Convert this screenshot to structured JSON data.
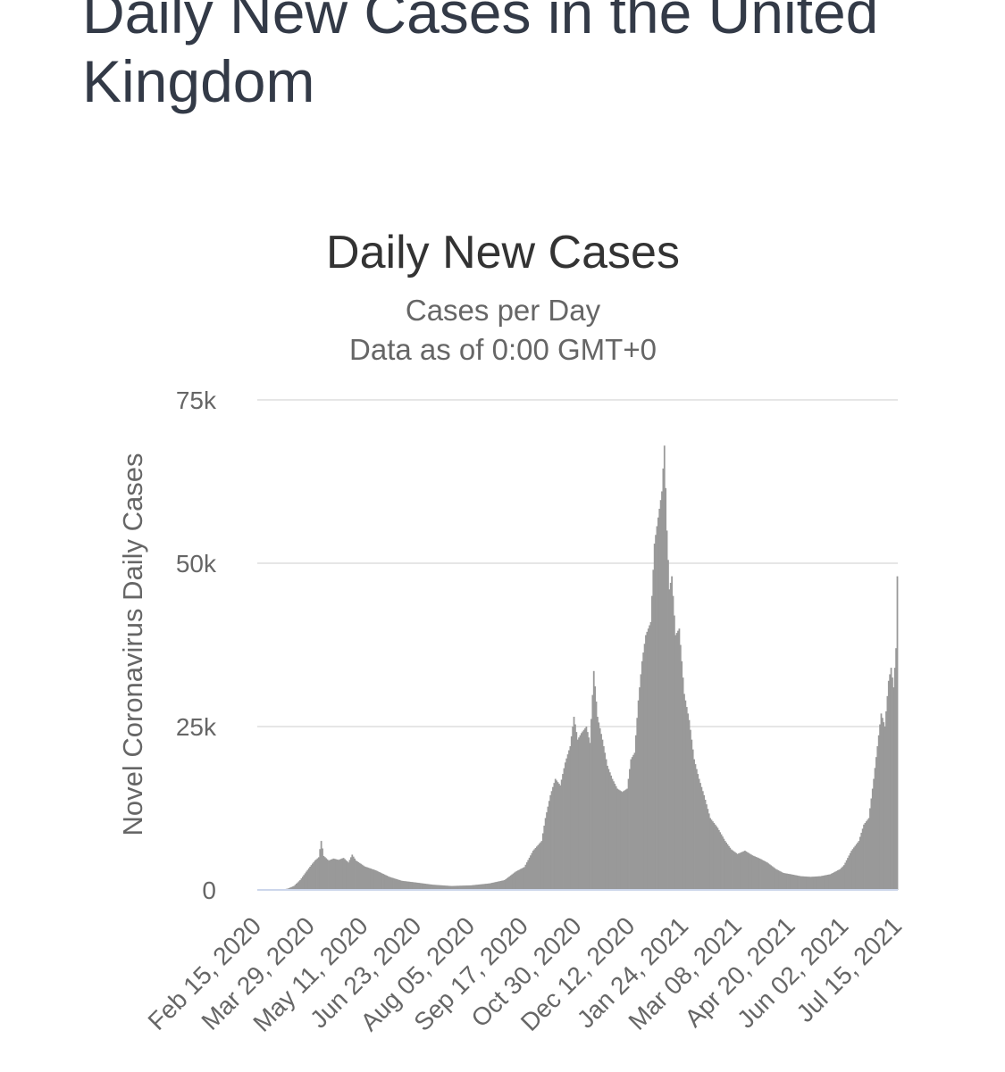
{
  "page": {
    "heading": "Daily New Cases in the United Kingdom"
  },
  "colors": {
    "bar": "#999999",
    "heading": "#333a47"
  },
  "chart_data": {
    "type": "bar",
    "title": "Daily New Cases",
    "subtitle_lines": [
      "Cases per Day",
      "Data as of 0:00 GMT+0"
    ],
    "ylabel": "Novel Coronavirus Daily Cases",
    "xlabel": "",
    "ylim": [
      0,
      75000
    ],
    "yticks": [
      {
        "value": 0,
        "label": "0"
      },
      {
        "value": 25000,
        "label": "25k"
      },
      {
        "value": 50000,
        "label": "50k"
      },
      {
        "value": 75000,
        "label": "75k"
      }
    ],
    "xticks": [
      "Feb 15, 2020",
      "Mar 29, 2020",
      "May 11, 2020",
      "Jun 23, 2020",
      "Aug 05, 2020",
      "Sep 17, 2020",
      "Oct 30, 2020",
      "Dec 12, 2020",
      "Jan 24, 2021",
      "Mar 08, 2021",
      "Apr 20, 2021",
      "Jun 02, 2021",
      "Jul 15, 2021"
    ],
    "grid": true,
    "legend": false,
    "x_start": "Feb 15, 2020",
    "x_end": "Jul 15, 2021",
    "series": [
      {
        "points": [
          [
            "Feb 15, 2020",
            0
          ],
          [
            "Mar 05, 2020",
            50
          ],
          [
            "Mar 10, 2020",
            200
          ],
          [
            "Mar 15, 2020",
            600
          ],
          [
            "Mar 20, 2020",
            1500
          ],
          [
            "Mar 25, 2020",
            2800
          ],
          [
            "Mar 29, 2020",
            3800
          ],
          [
            "Apr 01, 2020",
            4500
          ],
          [
            "Apr 04, 2020",
            5000
          ],
          [
            "Apr 06, 2020",
            7500
          ],
          [
            "Apr 08, 2020",
            5200
          ],
          [
            "Apr 12, 2020",
            4500
          ],
          [
            "Apr 16, 2020",
            4800
          ],
          [
            "Apr 20, 2020",
            4600
          ],
          [
            "Apr 24, 2020",
            4900
          ],
          [
            "Apr 28, 2020",
            4200
          ],
          [
            "May 01, 2020",
            5400
          ],
          [
            "May 04, 2020",
            4500
          ],
          [
            "May 08, 2020",
            4000
          ],
          [
            "May 11, 2020",
            3600
          ],
          [
            "May 20, 2020",
            3000
          ],
          [
            "May 31, 2020",
            2000
          ],
          [
            "Jun 10, 2020",
            1400
          ],
          [
            "Jun 23, 2020",
            1100
          ],
          [
            "Jul 05, 2020",
            800
          ],
          [
            "Jul 20, 2020",
            600
          ],
          [
            "Aug 05, 2020",
            700
          ],
          [
            "Aug 20, 2020",
            1000
          ],
          [
            "Sep 01, 2020",
            1500
          ],
          [
            "Sep 10, 2020",
            2800
          ],
          [
            "Sep 17, 2020",
            3500
          ],
          [
            "Sep 24, 2020",
            6000
          ],
          [
            "Oct 01, 2020",
            7500
          ],
          [
            "Oct 04, 2020",
            11000
          ],
          [
            "Oct 08, 2020",
            14500
          ],
          [
            "Oct 12, 2020",
            17000
          ],
          [
            "Oct 16, 2020",
            16000
          ],
          [
            "Oct 20, 2020",
            19500
          ],
          [
            "Oct 24, 2020",
            22000
          ],
          [
            "Oct 27, 2020",
            26500
          ],
          [
            "Oct 30, 2020",
            23000
          ],
          [
            "Nov 02, 2020",
            24000
          ],
          [
            "Nov 06, 2020",
            25000
          ],
          [
            "Nov 09, 2020",
            22500
          ],
          [
            "Nov 12, 2020",
            33500
          ],
          [
            "Nov 15, 2020",
            26500
          ],
          [
            "Nov 19, 2020",
            23000
          ],
          [
            "Nov 23, 2020",
            19000
          ],
          [
            "Nov 27, 2020",
            17000
          ],
          [
            "Dec 01, 2020",
            15500
          ],
          [
            "Dec 05, 2020",
            15000
          ],
          [
            "Dec 09, 2020",
            15500
          ],
          [
            "Dec 12, 2020",
            20000
          ],
          [
            "Dec 15, 2020",
            21000
          ],
          [
            "Dec 18, 2020",
            29000
          ],
          [
            "Dec 21, 2020",
            35000
          ],
          [
            "Dec 24, 2020",
            39000
          ],
          [
            "Dec 28, 2020",
            41000
          ],
          [
            "Dec 31, 2020",
            53000
          ],
          [
            "Jan 03, 2021",
            57000
          ],
          [
            "Jan 06, 2021",
            61000
          ],
          [
            "Jan 08, 2021",
            68000
          ],
          [
            "Jan 10, 2021",
            55000
          ],
          [
            "Jan 12, 2021",
            46000
          ],
          [
            "Jan 14, 2021",
            48000
          ],
          [
            "Jan 17, 2021",
            39000
          ],
          [
            "Jan 20, 2021",
            40000
          ],
          [
            "Jan 24, 2021",
            30000
          ],
          [
            "Jan 28, 2021",
            26000
          ],
          [
            "Feb 01, 2021",
            20000
          ],
          [
            "Feb 05, 2021",
            17000
          ],
          [
            "Feb 09, 2021",
            14500
          ],
          [
            "Feb 14, 2021",
            11000
          ],
          [
            "Feb 20, 2021",
            9500
          ],
          [
            "Feb 26, 2021",
            7500
          ],
          [
            "Mar 03, 2021",
            6200
          ],
          [
            "Mar 08, 2021",
            5500
          ],
          [
            "Mar 14, 2021",
            6000
          ],
          [
            "Mar 20, 2021",
            5300
          ],
          [
            "Mar 26, 2021",
            4800
          ],
          [
            "Apr 01, 2021",
            4200
          ],
          [
            "Apr 08, 2021",
            3200
          ],
          [
            "Apr 14, 2021",
            2600
          ],
          [
            "Apr 20, 2021",
            2400
          ],
          [
            "Apr 28, 2021",
            2100
          ],
          [
            "May 06, 2021",
            2000
          ],
          [
            "May 14, 2021",
            2100
          ],
          [
            "May 22, 2021",
            2400
          ],
          [
            "May 30, 2021",
            3200
          ],
          [
            "Jun 02, 2021",
            3800
          ],
          [
            "Jun 08, 2021",
            6000
          ],
          [
            "Jun 14, 2021",
            7500
          ],
          [
            "Jun 18, 2021",
            10000
          ],
          [
            "Jun 22, 2021",
            11000
          ],
          [
            "Jun 26, 2021",
            17000
          ],
          [
            "Jun 29, 2021",
            22000
          ],
          [
            "Jul 02, 2021",
            27000
          ],
          [
            "Jul 05, 2021",
            25000
          ],
          [
            "Jul 08, 2021",
            32000
          ],
          [
            "Jul 10, 2021",
            34000
          ],
          [
            "Jul 12, 2021",
            31000
          ],
          [
            "Jul 14, 2021",
            37000
          ],
          [
            "Jul 15, 2021",
            48000
          ]
        ]
      }
    ]
  }
}
